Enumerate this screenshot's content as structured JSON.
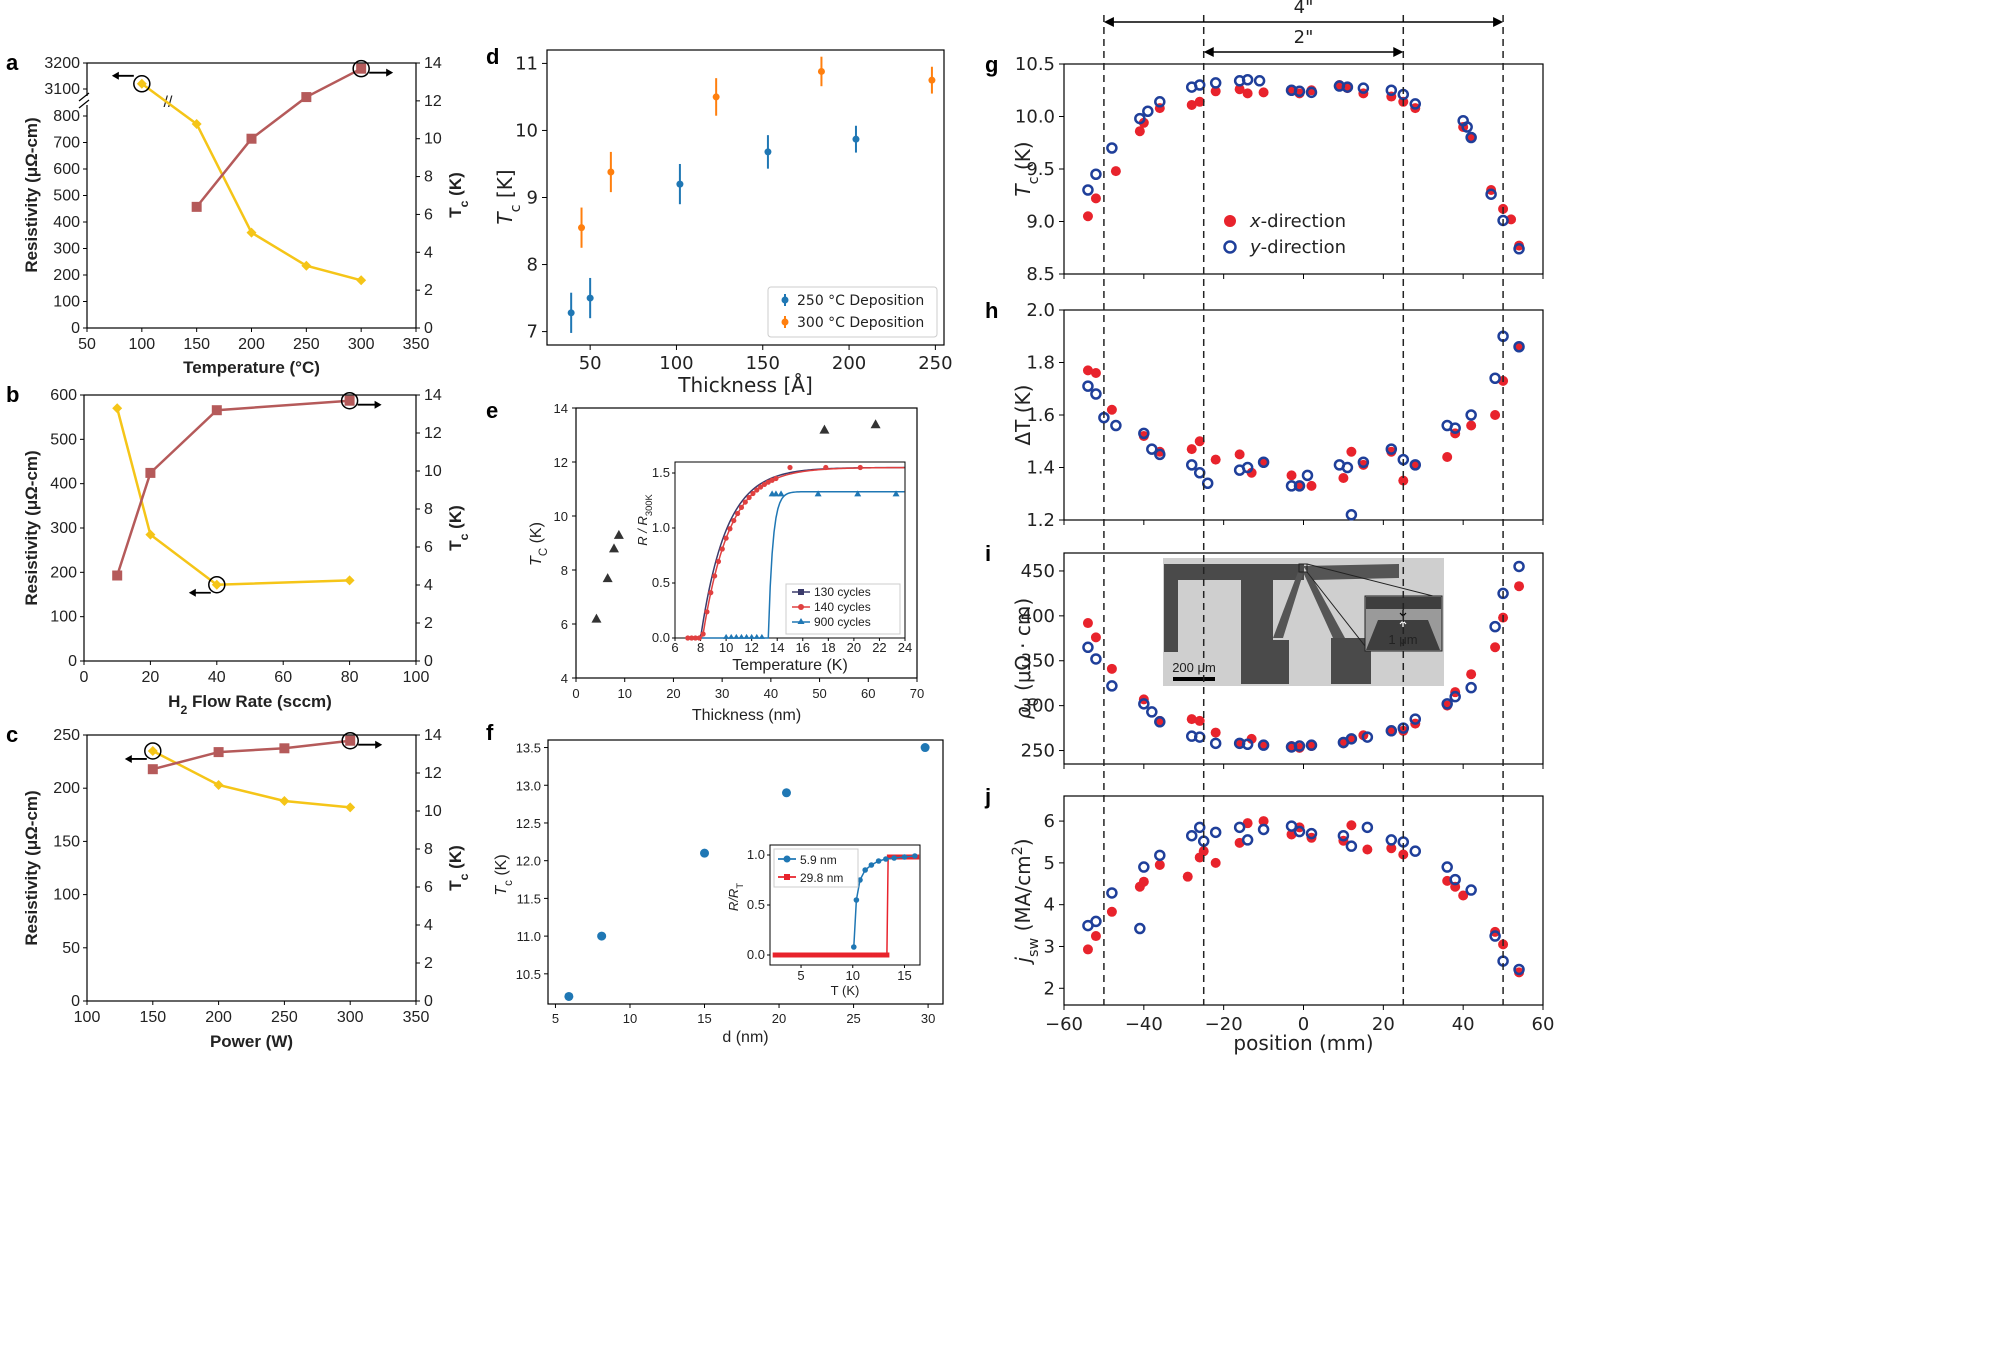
{
  "colors": {
    "yellow": "#f5c518",
    "brown": "#b55a5a",
    "blue": "#1f77b4",
    "orange": "#ff7f0e",
    "red": "#e8232c",
    "navy": "#1f3f9a",
    "dark": "#333333",
    "green_blue": "#1f77b4"
  },
  "chart_data": [
    {
      "id": "a",
      "type": "line",
      "letter": "a",
      "xlabel": "Temperature (°C)",
      "ylabel": "Resistivity (μΩ-cm)",
      "y2label": "Tc (K)",
      "xlim": [
        50,
        350
      ],
      "xticks": [
        50,
        100,
        150,
        200,
        250,
        300,
        350
      ],
      "yticks_lower": [
        0,
        100,
        200,
        300,
        400,
        500,
        600,
        700,
        800
      ],
      "yticks_upper": [
        3100,
        3200
      ],
      "y2lim": [
        0,
        14
      ],
      "y2ticks": [
        0,
        2,
        4,
        6,
        8,
        10,
        12,
        14
      ],
      "series": [
        {
          "axis": "left",
          "x": [
            100,
            150,
            200,
            250,
            300
          ],
          "y": [
            3120,
            770,
            360,
            235,
            180
          ]
        },
        {
          "axis": "right",
          "x": [
            150,
            200,
            250,
            300
          ],
          "y": [
            6.4,
            10.0,
            12.2,
            13.7
          ]
        }
      ]
    },
    {
      "id": "b",
      "type": "line",
      "letter": "b",
      "xlabel": "H2 Flow Rate (sccm)",
      "ylabel": "Resistivity (μΩ-cm)",
      "y2label": "Tc (K)",
      "xlim": [
        0,
        100
      ],
      "xticks": [
        0,
        20,
        40,
        60,
        80,
        100
      ],
      "ylim": [
        0,
        600
      ],
      "yticks": [
        0,
        100,
        200,
        300,
        400,
        500,
        600
      ],
      "y2lim": [
        0,
        14
      ],
      "y2ticks": [
        0,
        2,
        4,
        6,
        8,
        10,
        12,
        14
      ],
      "series": [
        {
          "axis": "left",
          "x": [
            10,
            20,
            40,
            80
          ],
          "y": [
            570,
            285,
            172,
            182
          ]
        },
        {
          "axis": "right",
          "x": [
            10,
            20,
            40,
            80
          ],
          "y": [
            4.5,
            9.9,
            13.2,
            13.7
          ]
        }
      ]
    },
    {
      "id": "c",
      "type": "line",
      "letter": "c",
      "xlabel": "Power (W)",
      "ylabel": "Resistivity (μΩ-cm)",
      "y2label": "Tc (K)",
      "xlim": [
        100,
        350
      ],
      "xticks": [
        100,
        150,
        200,
        250,
        300,
        350
      ],
      "ylim": [
        0,
        250
      ],
      "yticks": [
        0,
        50,
        100,
        150,
        200,
        250
      ],
      "y2lim": [
        0,
        14
      ],
      "y2ticks": [
        0,
        2,
        4,
        6,
        8,
        10,
        12,
        14
      ],
      "series": [
        {
          "axis": "left",
          "x": [
            150,
            200,
            250,
            300
          ],
          "y": [
            235,
            203,
            188,
            182
          ]
        },
        {
          "axis": "right",
          "x": [
            150,
            200,
            250,
            300
          ],
          "y": [
            12.2,
            13.1,
            13.3,
            13.7
          ]
        }
      ]
    },
    {
      "id": "d",
      "type": "scatter",
      "letter": "d",
      "xlabel": "Thickness [Å]",
      "ylabel": "Tc [K]",
      "xlim": [
        25,
        255
      ],
      "xticks": [
        50,
        100,
        150,
        200,
        250
      ],
      "ylim": [
        6.8,
        11.2
      ],
      "yticks": [
        7,
        8,
        9,
        10,
        11
      ],
      "series": [
        {
          "name": "250 °C Deposition",
          "x": [
            39,
            50,
            102,
            153,
            204
          ],
          "y": [
            7.28,
            7.5,
            9.2,
            9.68,
            9.87
          ],
          "err": [
            0.3,
            0.3,
            0.3,
            0.25,
            0.2
          ]
        },
        {
          "name": "300 °C Deposition",
          "x": [
            45,
            62,
            123,
            184,
            248
          ],
          "y": [
            8.55,
            9.38,
            10.5,
            10.88,
            10.75
          ],
          "err": [
            0.3,
            0.3,
            0.28,
            0.22,
            0.2
          ]
        }
      ]
    },
    {
      "id": "e",
      "type": "scatter",
      "letter": "e",
      "xlabel": "Thickness (nm)",
      "ylabel": "TC (K)",
      "xlim": [
        0,
        70
      ],
      "xticks": [
        0,
        10,
        20,
        30,
        40,
        50,
        60,
        70
      ],
      "ylim": [
        4,
        14
      ],
      "yticks": [
        4,
        6,
        8,
        10,
        12,
        14
      ],
      "series": [
        {
          "x": [
            4.2,
            6.5,
            7.8,
            8.8,
            51,
            61.5
          ],
          "y": [
            6.2,
            7.7,
            8.8,
            9.3,
            13.2,
            13.4
          ]
        }
      ],
      "inset": {
        "xlabel": "Temperature (K)",
        "ylabel": "R / R300K",
        "xlim": [
          6,
          24
        ],
        "xticks": [
          6,
          8,
          10,
          12,
          14,
          16,
          18,
          20,
          22,
          24
        ],
        "ylim": [
          0,
          1.6
        ],
        "yticks": [
          0.0,
          0.5,
          1.0,
          1.5
        ],
        "series": [
          {
            "name": "130 cycles"
          },
          {
            "name": "140 cycles"
          },
          {
            "name": "900 cycles"
          }
        ]
      }
    },
    {
      "id": "f",
      "type": "scatter",
      "letter": "f",
      "xlabel": "d (nm)",
      "ylabel": "Tc (K)",
      "xlim": [
        4.5,
        31
      ],
      "xticks": [
        5,
        10,
        15,
        20,
        25,
        30
      ],
      "ylim": [
        10.1,
        13.6
      ],
      "yticks": [
        10.5,
        11.0,
        11.5,
        12.0,
        12.5,
        13.0,
        13.5
      ],
      "series": [
        {
          "x": [
            5.9,
            8.1,
            15.0,
            20.5,
            29.8
          ],
          "y": [
            10.2,
            11.0,
            12.1,
            12.9,
            13.5
          ]
        }
      ],
      "inset": {
        "xlabel": "T (K)",
        "ylabel": "R/RT",
        "xlim": [
          2,
          16.5
        ],
        "xticks": [
          5,
          10,
          15
        ],
        "ylim": [
          -0.1,
          1.1
        ],
        "yticks": [
          0.0,
          0.5,
          1.0
        ],
        "series": [
          {
            "name": "5.9 nm"
          },
          {
            "name": "29.8 nm"
          }
        ]
      }
    },
    {
      "id": "g",
      "type": "scatter",
      "letter": "g",
      "ylabel": "Tc (K)",
      "xlim": [
        -60,
        60
      ],
      "ylim": [
        8.5,
        10.5
      ],
      "yticks": [
        8.5,
        9.0,
        9.5,
        10.0,
        10.5
      ],
      "series": [
        {
          "name": "x-direction",
          "x": [
            -54,
            -52,
            -47,
            -41,
            -40,
            -36,
            -28,
            -26,
            -22,
            -16,
            -14,
            -10,
            -3,
            -1,
            2,
            9,
            11,
            15,
            22,
            25,
            28,
            40,
            42,
            47,
            50,
            52,
            54
          ],
          "y": [
            9.05,
            9.22,
            9.48,
            9.86,
            9.94,
            10.08,
            10.11,
            10.14,
            10.24,
            10.26,
            10.22,
            10.23,
            10.25,
            10.22,
            10.25,
            10.3,
            10.27,
            10.22,
            10.19,
            10.14,
            10.08,
            9.9,
            9.8,
            9.3,
            9.12,
            9.02,
            8.77
          ]
        },
        {
          "name": "y-direction",
          "x": [
            -54,
            -52,
            -48,
            -41,
            -39,
            -36,
            -28,
            -26,
            -22,
            -16,
            -14,
            -11,
            -3,
            -1,
            2,
            9,
            11,
            15,
            22,
            25,
            28,
            40,
            41,
            42,
            47,
            50,
            54
          ],
          "y": [
            9.3,
            9.45,
            9.7,
            9.98,
            10.05,
            10.14,
            10.28,
            10.3,
            10.32,
            10.34,
            10.35,
            10.34,
            10.25,
            10.24,
            10.23,
            10.29,
            10.28,
            10.27,
            10.25,
            10.21,
            10.12,
            9.96,
            9.9,
            9.8,
            9.26,
            9.01,
            8.74
          ]
        }
      ]
    },
    {
      "id": "h",
      "type": "scatter",
      "letter": "h",
      "ylabel": "ΔT (K)",
      "xlim": [
        -60,
        60
      ],
      "ylim": [
        1.2,
        2.0
      ],
      "yticks": [
        1.2,
        1.4,
        1.6,
        1.8,
        2.0
      ],
      "series": [
        {
          "name": "x-direction",
          "x": [
            -54,
            -52,
            -48,
            -40,
            -36,
            -28,
            -26,
            -22,
            -16,
            -13,
            -10,
            -3,
            -1,
            2,
            10,
            12,
            15,
            22,
            25,
            28,
            36,
            38,
            42,
            48,
            50,
            54
          ],
          "y": [
            1.77,
            1.76,
            1.62,
            1.52,
            1.46,
            1.47,
            1.5,
            1.43,
            1.45,
            1.38,
            1.42,
            1.37,
            1.33,
            1.33,
            1.36,
            1.46,
            1.41,
            1.46,
            1.35,
            1.41,
            1.44,
            1.53,
            1.56,
            1.6,
            1.73,
            1.86
          ]
        },
        {
          "name": "y-direction",
          "x": [
            -54,
            -52,
            -50,
            -47,
            -40,
            -38,
            -36,
            -28,
            -26,
            -24,
            -16,
            -14,
            -10,
            -3,
            -1,
            1,
            9,
            11,
            12,
            15,
            22,
            25,
            28,
            36,
            38,
            42,
            48,
            50,
            54
          ],
          "y": [
            1.71,
            1.68,
            1.59,
            1.56,
            1.53,
            1.47,
            1.45,
            1.41,
            1.38,
            1.34,
            1.39,
            1.4,
            1.42,
            1.33,
            1.33,
            1.37,
            1.41,
            1.4,
            1.22,
            1.42,
            1.47,
            1.43,
            1.41,
            1.56,
            1.55,
            1.6,
            1.74,
            1.9,
            1.86
          ]
        }
      ]
    },
    {
      "id": "i",
      "type": "scatter",
      "letter": "i",
      "ylabel": "ρ0 (μΩ · cm)",
      "xlim": [
        -60,
        60
      ],
      "ylim": [
        235,
        470
      ],
      "yticks": [
        250,
        300,
        350,
        400,
        450
      ],
      "series": [
        {
          "name": "x-direction",
          "x": [
            -54,
            -52,
            -48,
            -40,
            -36,
            -28,
            -26,
            -22,
            -16,
            -13,
            -10,
            -3,
            -1,
            2,
            10,
            12,
            15,
            22,
            25,
            28,
            36,
            38,
            42,
            48,
            50,
            54
          ],
          "y": [
            392,
            376,
            341,
            307,
            283,
            285,
            283,
            270,
            258,
            263,
            256,
            255,
            253,
            255,
            258,
            263,
            267,
            272,
            272,
            280,
            300,
            315,
            335,
            365,
            398,
            433
          ]
        },
        {
          "name": "y-direction",
          "x": [
            -54,
            -52,
            -48,
            -40,
            -38,
            -36,
            -28,
            -26,
            -22,
            -16,
            -14,
            -10,
            -3,
            -1,
            2,
            10,
            12,
            16,
            22,
            25,
            28,
            36,
            38,
            42,
            48,
            50,
            54
          ],
          "y": [
            365,
            352,
            322,
            302,
            293,
            282,
            266,
            265,
            258,
            258,
            257,
            256,
            254,
            255,
            256,
            259,
            263,
            265,
            272,
            275,
            285,
            302,
            310,
            320,
            388,
            425,
            455
          ]
        }
      ],
      "inset_image": {
        "scale_label": "200 μm",
        "gap_label": "1 μm"
      }
    },
    {
      "id": "j",
      "type": "scatter",
      "letter": "j",
      "ylabel": "jsw (MA/cm2)",
      "xlabel": "position (mm)",
      "xlim": [
        -60,
        60
      ],
      "xticks": [
        -60,
        -40,
        -20,
        0,
        20,
        40,
        60
      ],
      "ylim": [
        1.6,
        6.6
      ],
      "yticks": [
        2,
        3,
        4,
        5,
        6
      ],
      "series": [
        {
          "name": "x-direction",
          "x": [
            -54,
            -52,
            -48,
            -41,
            -40,
            -36,
            -29,
            -26,
            -25,
            -22,
            -16,
            -14,
            -10,
            -3,
            -1,
            2,
            10,
            12,
            16,
            22,
            25,
            36,
            38,
            40,
            48,
            50,
            54
          ],
          "y": [
            2.93,
            3.25,
            3.83,
            4.43,
            4.55,
            4.95,
            4.67,
            5.13,
            5.28,
            5.0,
            5.48,
            5.95,
            6.0,
            5.68,
            5.85,
            5.6,
            5.53,
            5.9,
            5.32,
            5.35,
            5.2,
            4.57,
            4.43,
            4.22,
            3.35,
            3.05,
            2.38
          ]
        },
        {
          "name": "y-direction",
          "x": [
            -54,
            -52,
            -48,
            -41,
            -40,
            -36,
            -28,
            -26,
            -25,
            -22,
            -16,
            -14,
            -10,
            -3,
            -1,
            2,
            10,
            12,
            16,
            22,
            25,
            28,
            36,
            38,
            42,
            48,
            50,
            54
          ],
          "y": [
            3.5,
            3.6,
            4.28,
            3.43,
            4.9,
            5.18,
            5.65,
            5.85,
            5.52,
            5.73,
            5.85,
            5.55,
            5.8,
            5.88,
            5.75,
            5.7,
            5.65,
            5.4,
            5.85,
            5.55,
            5.5,
            5.28,
            4.9,
            4.6,
            4.35,
            3.25,
            2.65,
            2.45
          ]
        }
      ],
      "legend": [
        "x-direction",
        "y-direction"
      ]
    }
  ],
  "annotations": {
    "span_4in": "4\"",
    "span_2in": "2\"",
    "break_mark": "//",
    "x_arrow_label": ""
  },
  "labels": {
    "a_letter": "a",
    "b_letter": "b",
    "c_letter": "c",
    "d_letter": "d",
    "e_letter": "e",
    "f_letter": "f",
    "g_letter": "g",
    "h_letter": "h",
    "i_letter": "i",
    "j_letter": "j",
    "a_xlabel": "Temperature (°C)",
    "b_xlabel_pre": "H",
    "b_xlabel_sub": "2",
    "b_xlabel_post": " Flow Rate (sccm)",
    "c_xlabel": "Power (W)",
    "res_label": "Resistivity (μΩ-cm)",
    "tc_label_main": "T",
    "tc_label_sub": "c",
    "tc_label_unit": " (K)",
    "d_xlabel": "Thickness [Å]",
    "d_ylabel_main": "T",
    "d_ylabel_sub": "c",
    "d_ylabel_unit": " [K]",
    "d_leg1": "250 °C Deposition",
    "d_leg2": "300 °C Deposition",
    "e_xlabel": "Thickness (nm)",
    "e_ylabel_main": "T",
    "e_ylabel_sub": "C",
    "e_ylabel_unit": " (K)",
    "e_inset_xlabel": "Temperature (K)",
    "e_inset_ylabel_main": "R / R",
    "e_inset_ylabel_sub": "300K",
    "e_leg1": "130 cycles",
    "e_leg2": "140 cycles",
    "e_leg3": "900 cycles",
    "f_xlabel": "d (nm)",
    "f_ylabel_main": "T",
    "f_ylabel_sub": "c",
    "f_ylabel_unit": " (K)",
    "f_inset_xlabel": "T (K)",
    "f_inset_ylabel_main": "R/R",
    "f_inset_ylabel_sub": "T",
    "f_leg1": "5.9 nm",
    "f_leg2": "29.8 nm",
    "g_ylabel_main": "T",
    "g_ylabel_sub": "c",
    "g_ylabel_unit": " (K)",
    "h_ylabel": "ΔT (K)",
    "i_ylabel_main": "ρ",
    "i_ylabel_sub": "0",
    "i_ylabel_unit": " (μΩ · cm)",
    "j_ylabel_main": "j",
    "j_ylabel_sub": "sw",
    "j_ylabel_unit": " (MA/cm",
    "j_ylabel_sup": "2",
    "j_ylabel_close": ")",
    "j_xlabel": "position (mm)",
    "g_leg1": "x-direction",
    "g_leg2": "y-direction",
    "i_scale": "200 μm",
    "i_gap": "1 μm"
  }
}
